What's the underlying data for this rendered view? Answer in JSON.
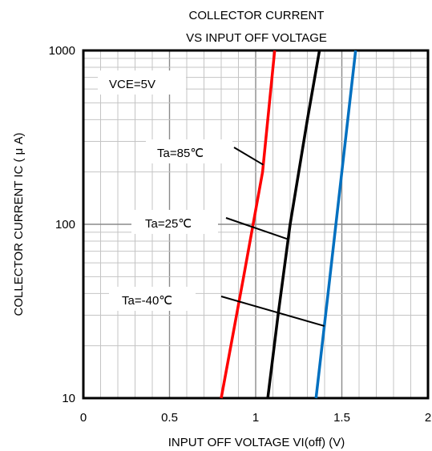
{
  "chart_data": {
    "type": "line",
    "title_lines": [
      "COLLECTOR CURRENT",
      "VS INPUT OFF VOLTAGE"
    ],
    "xlabel": "INPUT OFF VOLTAGE VI(off) (V)",
    "ylabel": "COLLECTOR CURRENT IC ( μ A)",
    "xlim": [
      0,
      2
    ],
    "ylim": [
      10,
      1000
    ],
    "yscale": "log",
    "x_ticks": [
      "0",
      "0.5",
      "1",
      "1.5",
      "2"
    ],
    "y_ticks": [
      "10",
      "100",
      "1000"
    ],
    "grid": true,
    "condition": "VCE=5V",
    "series": [
      {
        "name": "Ta=85℃",
        "color": "#ff0000",
        "points": [
          [
            0.8,
            10
          ],
          [
            0.93,
            50
          ],
          [
            1.04,
            200
          ],
          [
            1.11,
            1000
          ]
        ]
      },
      {
        "name": "Ta=25℃",
        "color": "#000000",
        "points": [
          [
            1.07,
            10
          ],
          [
            1.13,
            30
          ],
          [
            1.2,
            100
          ],
          [
            1.3,
            400
          ],
          [
            1.37,
            1000
          ]
        ]
      },
      {
        "name": "Ta=-40℃",
        "color": "#0070c0",
        "points": [
          [
            1.35,
            10
          ],
          [
            1.42,
            40
          ],
          [
            1.5,
            200
          ],
          [
            1.58,
            1000
          ]
        ]
      }
    ]
  }
}
